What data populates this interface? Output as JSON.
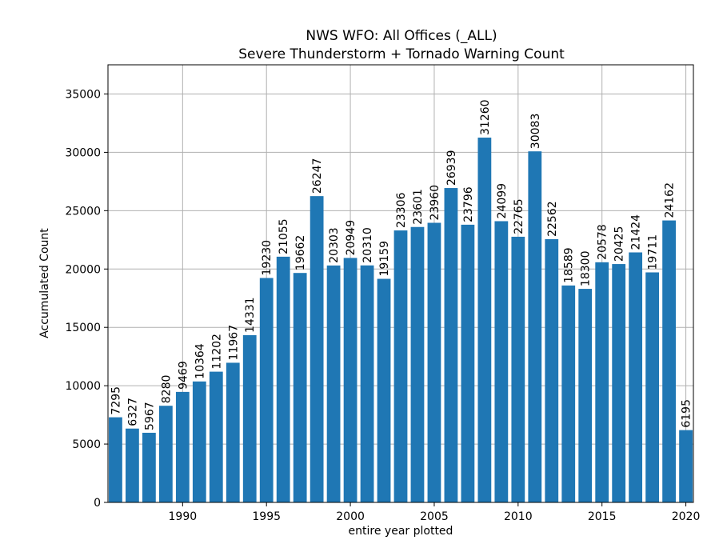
{
  "chart_data": {
    "type": "bar",
    "title": "NWS WFO: All Offices (_ALL)",
    "subtitle": "Severe Thunderstorm + Tornado Warning Count",
    "xlabel": "entire year plotted",
    "ylabel": "Accumulated Count",
    "x": [
      1986,
      1987,
      1988,
      1989,
      1990,
      1991,
      1992,
      1993,
      1994,
      1995,
      1996,
      1997,
      1998,
      1999,
      2000,
      2001,
      2002,
      2003,
      2004,
      2005,
      2006,
      2007,
      2008,
      2009,
      2010,
      2011,
      2012,
      2013,
      2014,
      2015,
      2016,
      2017,
      2018,
      2019,
      2020
    ],
    "values": [
      7295,
      6327,
      5967,
      8280,
      9469,
      10364,
      11202,
      11967,
      14331,
      19230,
      21055,
      19662,
      26247,
      20303,
      20949,
      20310,
      19159,
      23306,
      23601,
      23960,
      26939,
      23796,
      31260,
      24099,
      22765,
      30083,
      22562,
      18589,
      18300,
      20578,
      20425,
      21424,
      19711,
      24162,
      6195
    ],
    "xlim": [
      1985.55,
      1986.5
    ],
    "ylim": [
      0,
      37500
    ],
    "xticks": [
      1990,
      1995,
      2000,
      2005,
      2010,
      2015,
      2020
    ],
    "yticks": [
      0,
      5000,
      10000,
      15000,
      20000,
      25000,
      30000,
      35000
    ],
    "grid": true,
    "bar_color": "#1f77b4"
  }
}
